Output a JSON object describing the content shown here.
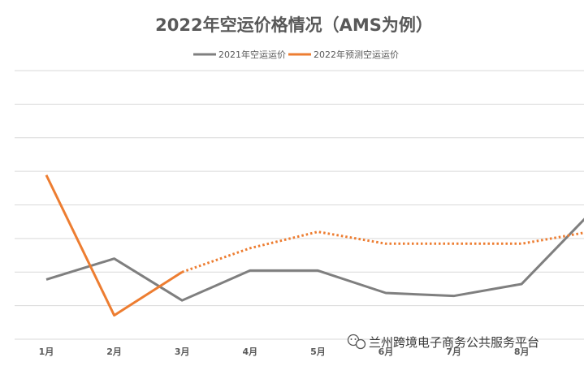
{
  "chart_data": {
    "type": "line",
    "title": "2022年空运价格情况（AMS为例）",
    "categories": [
      "1月",
      "2月",
      "3月",
      "4月",
      "5月",
      "6月",
      "7月",
      "8月",
      ""
    ],
    "series": [
      {
        "name": "2021年空运运价",
        "color": "#7f7f7f",
        "style": "solid",
        "values": [
          1.0,
          1.7,
          0.3,
          1.3,
          1.3,
          0.55,
          0.45,
          0.85,
          3.2
        ]
      },
      {
        "name": "2022年预测空运运价",
        "color": "#ed7d31",
        "style": "solid-then-dotted",
        "solid_until_index": 2,
        "values": [
          4.5,
          -0.2,
          1.25,
          2.05,
          2.6,
          2.2,
          2.2,
          2.2,
          2.6
        ]
      }
    ],
    "ylim": [
      -1,
      8
    ],
    "grid": true,
    "legend": "top-center",
    "xlabel": "",
    "ylabel": ""
  },
  "watermark": {
    "text": "兰州跨境电子商务公共服务平台",
    "icon": "wechat-icon"
  }
}
